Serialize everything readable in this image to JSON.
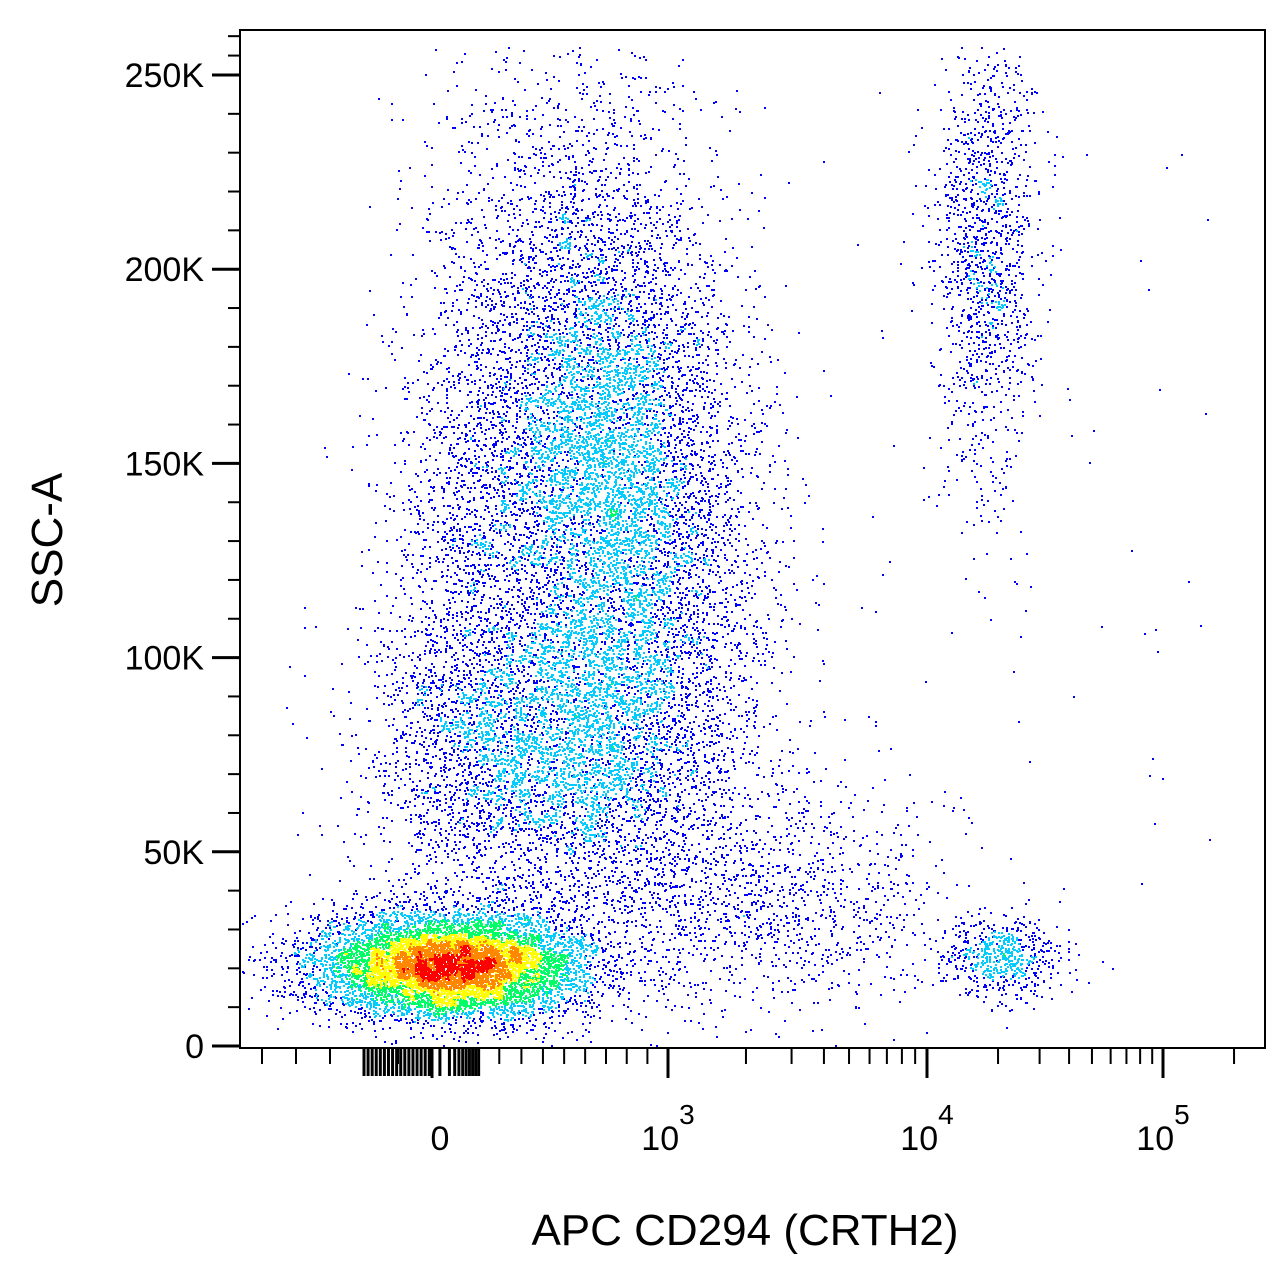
{
  "chart_data": {
    "type": "scatter",
    "subtype": "flow-cytometry-density-dot-plot",
    "title": "",
    "xlabel": "APC CD294 (CRTH2)",
    "ylabel": "SSC-A",
    "x_scale": "biexponential",
    "x_ticks": [
      {
        "label": "0",
        "base": "0",
        "exponent": ""
      },
      {
        "label": "10^3",
        "base": "10",
        "exponent": "3"
      },
      {
        "label": "10^4",
        "base": "10",
        "exponent": "4"
      },
      {
        "label": "10^5",
        "base": "10",
        "exponent": "5"
      }
    ],
    "y_ticks": [
      "0",
      "50K",
      "100K",
      "150K",
      "200K",
      "250K"
    ],
    "ylim": [
      0,
      262000
    ],
    "color_scale": [
      "#0000ff",
      "#00ccff",
      "#00ff66",
      "#ffff00",
      "#ff8800",
      "#ff0000"
    ],
    "populations": [
      {
        "name": "low SSC, CRTH2-negative cluster",
        "x_center": 0,
        "y_center": 20000,
        "relative_density": 1.0
      },
      {
        "name": "high SSC, CRTH2-dim cluster",
        "x_center": 500,
        "y_center": 145000,
        "relative_density": 0.7
      },
      {
        "name": "intermediate SSC cluster",
        "x_center": 300,
        "y_center": 75000,
        "relative_density": 0.3
      },
      {
        "name": "high SSC, CRTH2-positive cluster",
        "x_center": 18000,
        "y_center": 200000,
        "relative_density": 0.15
      },
      {
        "name": "low SSC, CRTH2-positive cluster",
        "x_center": 18000,
        "y_center": 22000,
        "relative_density": 0.1
      }
    ]
  }
}
